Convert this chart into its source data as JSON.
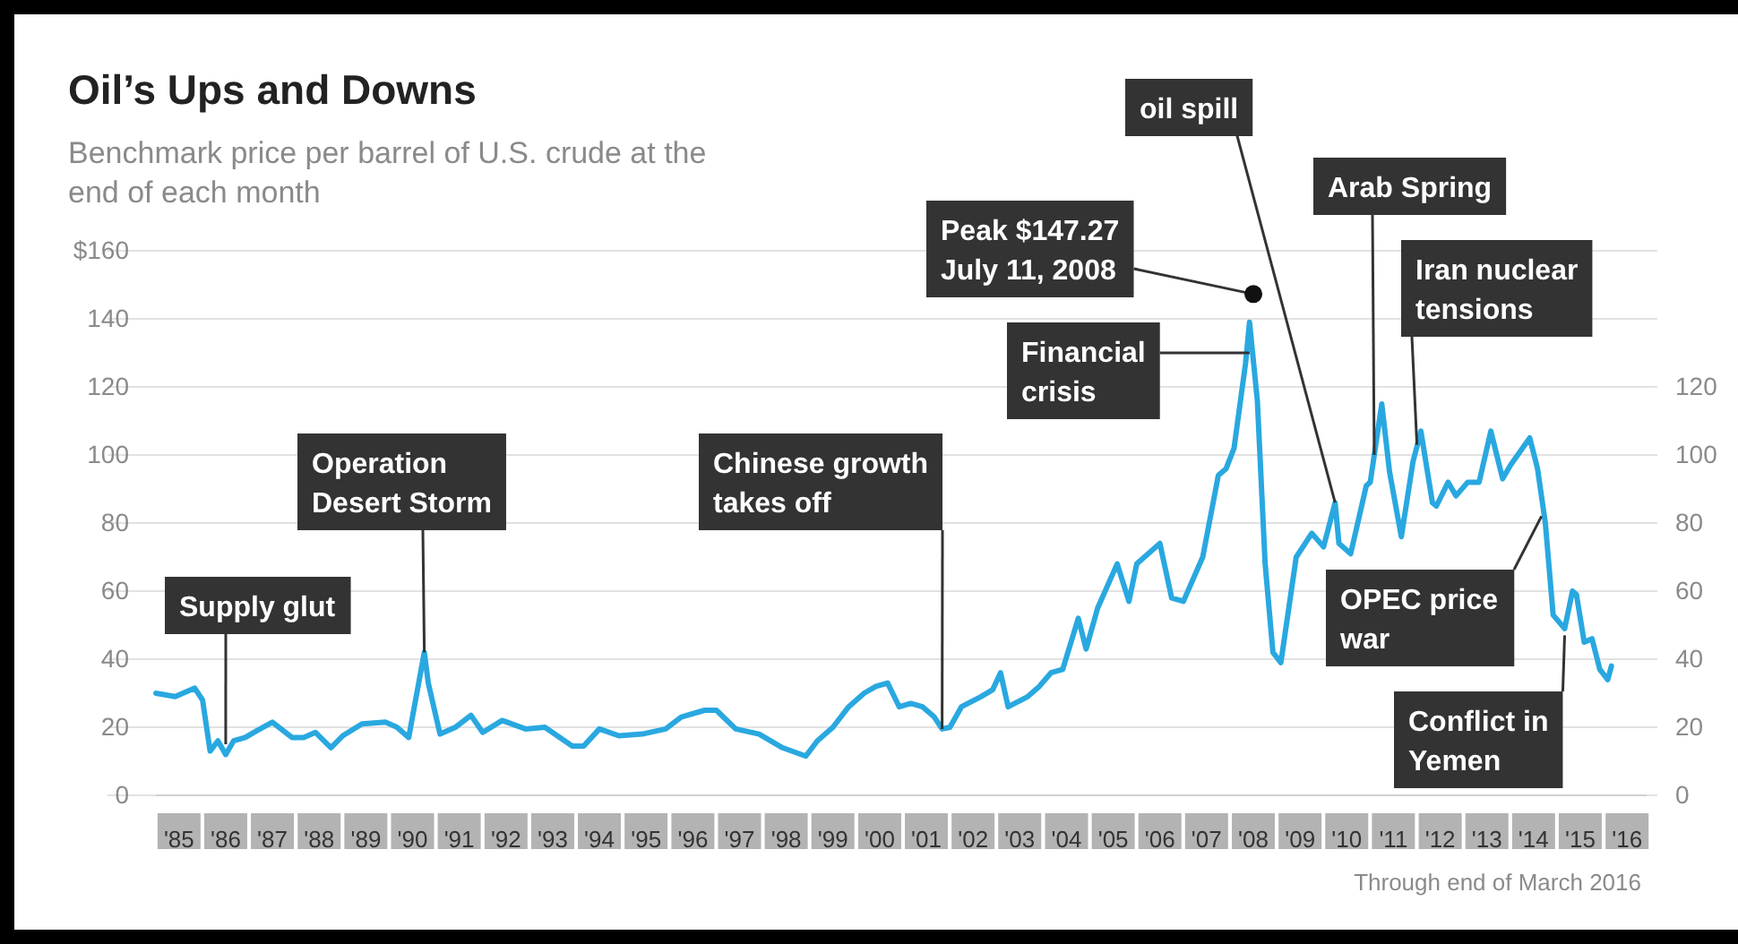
{
  "chart_data": {
    "type": "line",
    "title": "Oil’s Ups and Downs",
    "subtitle": "Benchmark price per barrel of U.S. crude at the end of each month",
    "x": [
      "1985-01",
      "1985-06",
      "1985-11",
      "1986-01",
      "1986-03",
      "1986-05",
      "1986-07",
      "1986-09",
      "1986-12",
      "1987-03",
      "1987-07",
      "1987-12",
      "1988-03",
      "1988-06",
      "1988-10",
      "1989-01",
      "1989-06",
      "1989-12",
      "1990-03",
      "1990-06",
      "1990-10",
      "1990-11",
      "1991-01",
      "1991-02",
      "1991-06",
      "1991-10",
      "1992-01",
      "1992-06",
      "1992-12",
      "1993-05",
      "1993-12",
      "1994-03",
      "1994-07",
      "1994-12",
      "1995-06",
      "1995-12",
      "1996-04",
      "1996-10",
      "1997-01",
      "1997-06",
      "1997-12",
      "1998-06",
      "1998-12",
      "1999-03",
      "1999-07",
      "1999-11",
      "2000-03",
      "2000-06",
      "2000-09",
      "2000-12",
      "2001-03",
      "2001-06",
      "2001-09",
      "2001-11",
      "2002-01",
      "2002-04",
      "2002-09",
      "2002-12",
      "2003-02",
      "2003-04",
      "2003-09",
      "2003-12",
      "2004-03",
      "2004-06",
      "2004-10",
      "2004-12",
      "2005-03",
      "2005-08",
      "2005-11",
      "2006-01",
      "2006-07",
      "2006-10",
      "2007-01",
      "2007-06",
      "2007-10",
      "2007-12",
      "2008-02",
      "2008-05",
      "2008-06",
      "2008-08",
      "2008-10",
      "2008-12",
      "2009-02",
      "2009-06",
      "2009-10",
      "2010-01",
      "2010-04",
      "2010-05",
      "2010-08",
      "2010-12",
      "2011-01",
      "2011-04",
      "2011-06",
      "2011-09",
      "2011-12",
      "2012-02",
      "2012-05",
      "2012-06",
      "2012-09",
      "2012-11",
      "2013-02",
      "2013-05",
      "2013-08",
      "2013-11",
      "2014-01",
      "2014-06",
      "2014-08",
      "2014-10",
      "2014-12",
      "2015-03",
      "2015-05",
      "2015-06",
      "2015-08",
      "2015-10",
      "2015-12",
      "2016-02",
      "2016-03"
    ],
    "series": [
      {
        "color": "#29a8e0",
        "values": [
          30,
          29,
          31.5,
          28,
          13,
          16,
          12,
          16,
          17,
          19,
          21.5,
          17,
          17,
          18.5,
          14,
          17.5,
          21,
          21.5,
          20,
          17,
          42,
          33,
          23,
          18,
          20,
          23.5,
          18.5,
          22,
          19.5,
          20,
          14.5,
          14.5,
          19.5,
          17.5,
          18,
          19.5,
          23,
          25,
          25,
          19.5,
          18,
          14,
          11.5,
          16,
          20,
          26,
          30,
          32,
          33,
          26,
          27,
          26,
          23,
          19.5,
          20,
          26,
          29,
          31,
          36,
          26,
          29,
          32,
          36,
          37,
          52,
          43,
          55,
          68,
          57,
          68,
          74,
          58,
          57,
          70,
          94,
          96,
          102,
          127,
          139,
          116,
          68,
          42,
          39,
          70,
          77,
          73,
          86,
          74,
          71,
          91,
          92,
          115,
          95,
          76,
          98,
          107,
          86,
          85,
          92,
          88,
          92,
          92,
          107,
          93,
          97,
          105,
          96,
          80,
          53,
          49,
          60,
          59,
          45,
          46,
          37,
          34,
          38
        ]
      }
    ],
    "xlim": [
      "1985-01",
      "2016-12"
    ],
    "xticks": [
      {
        "value": "1985-07",
        "label": "'85"
      },
      {
        "value": "1986-07",
        "label": "'86"
      },
      {
        "value": "1987-07",
        "label": "'87"
      },
      {
        "value": "1988-07",
        "label": "'88"
      },
      {
        "value": "1989-07",
        "label": "'89"
      },
      {
        "value": "1990-07",
        "label": "'90"
      },
      {
        "value": "1991-07",
        "label": "'91"
      },
      {
        "value": "1992-07",
        "label": "'92"
      },
      {
        "value": "1993-07",
        "label": "'93"
      },
      {
        "value": "1994-07",
        "label": "'94"
      },
      {
        "value": "1995-07",
        "label": "'95"
      },
      {
        "value": "1996-07",
        "label": "'96"
      },
      {
        "value": "1997-07",
        "label": "'97"
      },
      {
        "value": "1998-07",
        "label": "'98"
      },
      {
        "value": "1999-07",
        "label": "'99"
      },
      {
        "value": "2000-07",
        "label": "'00"
      },
      {
        "value": "2001-07",
        "label": "'01"
      },
      {
        "value": "2002-07",
        "label": "'02"
      },
      {
        "value": "2003-07",
        "label": "'03"
      },
      {
        "value": "2004-07",
        "label": "'04"
      },
      {
        "value": "2005-07",
        "label": "'05"
      },
      {
        "value": "2006-07",
        "label": "'06"
      },
      {
        "value": "2007-07",
        "label": "'07"
      },
      {
        "value": "2008-07",
        "label": "'08"
      },
      {
        "value": "2009-07",
        "label": "'09"
      },
      {
        "value": "2010-07",
        "label": "'10"
      },
      {
        "value": "2011-07",
        "label": "'11"
      },
      {
        "value": "2012-07",
        "label": "'12"
      },
      {
        "value": "2013-07",
        "label": "'13"
      },
      {
        "value": "2014-07",
        "label": "'14"
      },
      {
        "value": "2015-07",
        "label": "'15"
      },
      {
        "value": "2016-07",
        "label": "'16"
      }
    ],
    "ylim": [
      0,
      160
    ],
    "yticks": [
      0,
      20,
      40,
      60,
      80,
      100,
      120,
      140,
      {
        "value": 160,
        "label": "$160"
      }
    ],
    "y2lim": [
      0,
      160
    ],
    "y2ticks": [
      0,
      20,
      40,
      60,
      80,
      100,
      120
    ],
    "grid": "y",
    "annotations": [
      {
        "text": "Supply glut",
        "x": "1986-07",
        "y": 15
      },
      {
        "text": "Operation Desert Storm",
        "x": "1990-10",
        "y": 42
      },
      {
        "text": "Chinese growth takes off",
        "x": "2001-11",
        "y": 19.5
      },
      {
        "text": "Peak $147.27 July 11, 2008",
        "x": "2008-07",
        "y": 147.27
      },
      {
        "text": "Financial crisis",
        "x": "2008-06",
        "y": 130
      },
      {
        "text": "oil spill",
        "x": "2010-04",
        "y": 86
      },
      {
        "text": "Arab Spring",
        "x": "2011-02",
        "y": 100
      },
      {
        "text": "Iran nuclear tensions",
        "x": "2012-01",
        "y": 103
      },
      {
        "text": "OPEC price war",
        "x": "2014-09",
        "y": 82
      },
      {
        "text": "Conflict in Yemen",
        "x": "2015-03",
        "y": 47
      },
      "Through end of March 2016"
    ]
  }
}
